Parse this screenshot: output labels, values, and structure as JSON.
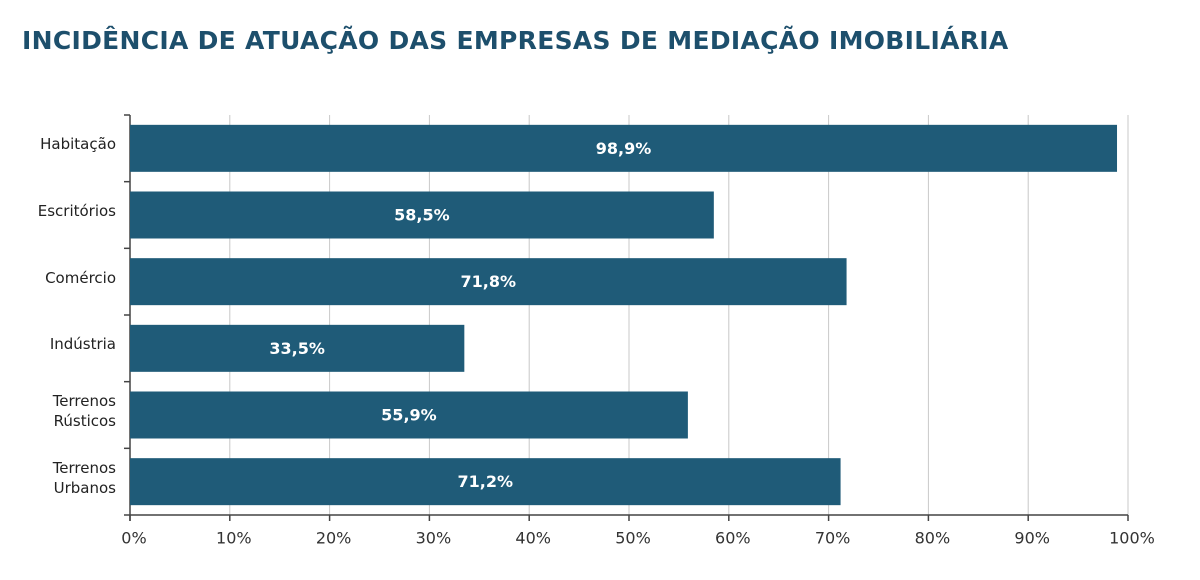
{
  "chart_data": {
    "type": "bar",
    "orientation": "horizontal",
    "title": "INCIDÊNCIA DE ATUAÇÃO DAS EMPRESAS DE MEDIAÇÃO IMOBILIÁRIA",
    "categories": [
      "Habitação",
      "Escritórios",
      "Comércio",
      "Indústria",
      "Terrenos\nRústicos",
      "Terrenos\nUrbanos"
    ],
    "values": [
      98.9,
      58.5,
      71.8,
      33.5,
      55.9,
      71.2
    ],
    "value_labels": [
      "98,9%",
      "58,5%",
      "71,8%",
      "33,5%",
      "55,9%",
      "71,2%"
    ],
    "color": "#1f5b78",
    "xlim": [
      0,
      100
    ],
    "xticks": [
      {
        "value": 0,
        "label": "0%"
      },
      {
        "value": 10,
        "label": "10%"
      },
      {
        "value": 20,
        "label": "20%"
      },
      {
        "value": 30,
        "label": "30%"
      },
      {
        "value": 40,
        "label": "40%"
      },
      {
        "value": 50,
        "label": "50%"
      },
      {
        "value": 60,
        "label": "60%"
      },
      {
        "value": 70,
        "label": "70%"
      },
      {
        "value": 80,
        "label": "80%"
      },
      {
        "value": 90,
        "label": "90%"
      },
      {
        "value": 100,
        "label": "100%"
      }
    ],
    "grid": true
  }
}
